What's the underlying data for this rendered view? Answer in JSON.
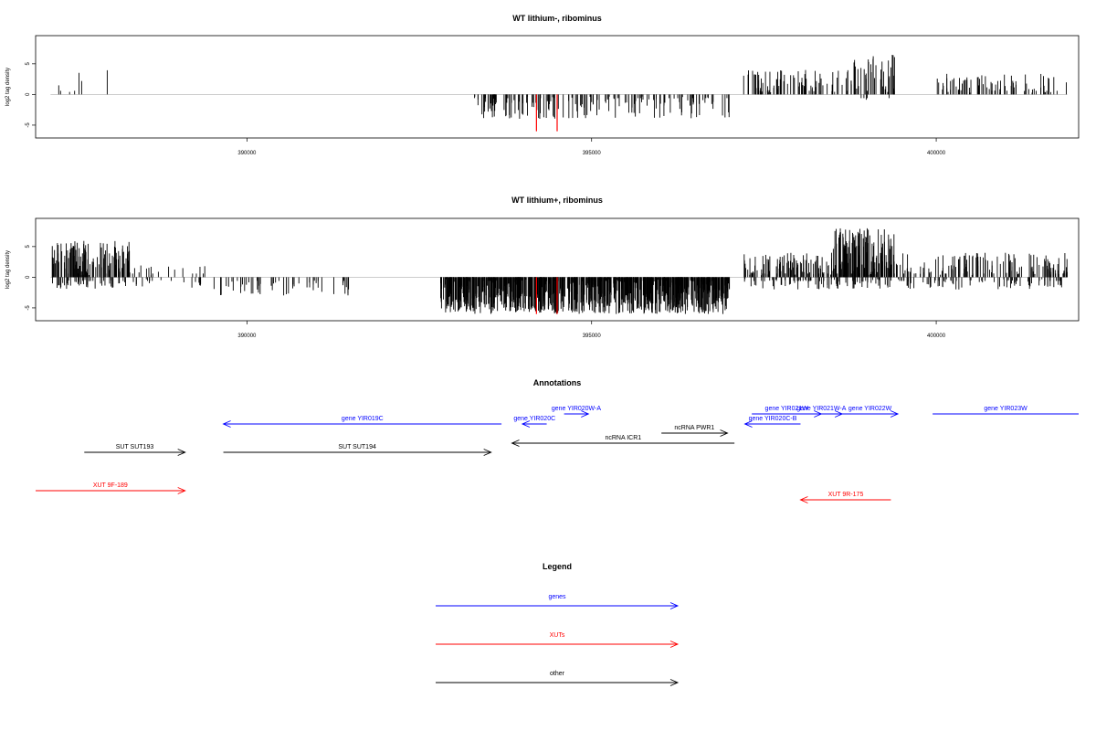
{
  "chart_data": [
    {
      "type": "bar",
      "title": "WT lithium-, ribominus",
      "ylabel": "log2 tag density",
      "xlim": [
        387000,
        402000
      ],
      "ylim": [
        -6.5,
        9
      ],
      "x_ticks": [
        390000,
        395000,
        400000
      ],
      "y_ticks": [
        -5,
        0,
        5
      ],
      "x_tick_labels": [
        "390000",
        "395000",
        "400000"
      ],
      "y_tick_labels": [
        "-5",
        "0",
        "5"
      ],
      "highlight_color": "#ff0000",
      "bar_color": "#000000",
      "highlights": [
        {
          "x": 394200,
          "value": -6
        },
        {
          "x": 394500,
          "value": -6
        }
      ],
      "segments": [
        {
          "x0": 387150,
          "x1": 388300,
          "density": 0.08,
          "min": -1,
          "max": 5.5,
          "seed": 11
        },
        {
          "x0": 393300,
          "x1": 397000,
          "density": 0.6,
          "min": -4,
          "max": 0,
          "seed": 23
        },
        {
          "x0": 397200,
          "x1": 398800,
          "density": 0.7,
          "min": 0,
          "max": 4,
          "seed": 31
        },
        {
          "x0": 398800,
          "x1": 399400,
          "density": 1.0,
          "min": -1,
          "max": 6.5,
          "seed": 41
        },
        {
          "x0": 400000,
          "x1": 401900,
          "density": 0.55,
          "min": 0,
          "max": 3.5,
          "seed": 53
        }
      ]
    },
    {
      "type": "bar",
      "title": "WT lithium+, ribominus",
      "ylabel": "log2 tag density",
      "xlim": [
        387000,
        402000
      ],
      "ylim": [
        -6.5,
        9
      ],
      "x_ticks": [
        390000,
        395000,
        400000
      ],
      "y_ticks": [
        -5,
        0,
        5
      ],
      "x_tick_labels": [
        "390000",
        "395000",
        "400000"
      ],
      "y_tick_labels": [
        "-5",
        "0",
        "5"
      ],
      "highlight_color": "#ff0000",
      "bar_color": "#000000",
      "highlights": [
        {
          "x": 394200,
          "value": -6
        },
        {
          "x": 394500,
          "value": -6
        }
      ],
      "segments": [
        {
          "x0": 387150,
          "x1": 388300,
          "density": 2.0,
          "min": -2,
          "max": 6,
          "seed": 61
        },
        {
          "x0": 388300,
          "x1": 389400,
          "density": 0.45,
          "min": -2,
          "max": 2,
          "seed": 67
        },
        {
          "x0": 389500,
          "x1": 391500,
          "density": 0.35,
          "min": -3,
          "max": 0,
          "seed": 71
        },
        {
          "x0": 392800,
          "x1": 397000,
          "density": 3.0,
          "min": -6,
          "max": 0,
          "seed": 79
        },
        {
          "x0": 397200,
          "x1": 398500,
          "density": 1.6,
          "min": -2,
          "max": 4,
          "seed": 83
        },
        {
          "x0": 398500,
          "x1": 399400,
          "density": 2.6,
          "min": -2,
          "max": 8,
          "seed": 89
        },
        {
          "x0": 399400,
          "x1": 401900,
          "density": 1.2,
          "min": -2,
          "max": 4,
          "seed": 97
        }
      ]
    }
  ],
  "annotations": {
    "title": "Annotations",
    "xlim": [
      387000,
      402000
    ],
    "features": [
      {
        "label": "gene YIR020W-A",
        "x_start": 394600,
        "x_end": 394950,
        "row": 0,
        "color": "#0000ff"
      },
      {
        "label": "gene YIR019C",
        "x_start": 393700,
        "x_end": 389700,
        "row": 1,
        "color": "#0000ff"
      },
      {
        "label": "gene YIR020C",
        "x_start": 394350,
        "x_end": 394000,
        "row": 1,
        "color": "#0000ff"
      },
      {
        "label": "ncRNA PWR1",
        "x_start": 396000,
        "x_end": 396950,
        "row": 2,
        "color": "#000000"
      },
      {
        "label": "ncRNA ICR1",
        "x_start": 397050,
        "x_end": 393850,
        "row": 3,
        "color": "#000000"
      },
      {
        "label": "SUT SUT193",
        "x_start": 387700,
        "x_end": 389150,
        "row": 4,
        "color": "#000000"
      },
      {
        "label": "SUT SUT194",
        "x_start": 389700,
        "x_end": 393550,
        "row": 4,
        "color": "#000000"
      },
      {
        "label": "gene YIR021W",
        "x_start": 397300,
        "x_end": 398300,
        "row": 0,
        "color": "#0000ff"
      },
      {
        "label": "gene YIR020C-B",
        "x_start": 398000,
        "x_end": 397200,
        "row": 1,
        "color": "#0000ff"
      },
      {
        "label": "gene YIR021W-A",
        "x_start": 398000,
        "x_end": 398600,
        "row": 0,
        "color": "#0000ff"
      },
      {
        "label": "gene YIR022W",
        "x_start": 398600,
        "x_end": 399400,
        "row": 0,
        "color": "#0000ff"
      },
      {
        "label": "gene YIR023W",
        "x_start": 399900,
        "x_end": 402000,
        "row": 0,
        "color": "#0000ff"
      },
      {
        "label": "XUT 9F-189",
        "x_start": 387000,
        "x_end": 389150,
        "row": 5,
        "color": "#ff0000"
      },
      {
        "label": "XUT 9R-175",
        "x_start": 399300,
        "x_end": 398000,
        "row": 6,
        "color": "#ff0000"
      }
    ]
  },
  "legend": {
    "title": "Legend",
    "items": [
      {
        "label": "genes",
        "color": "#0000ff"
      },
      {
        "label": "XUTs",
        "color": "#ff0000"
      },
      {
        "label": "other",
        "color": "#000000"
      }
    ]
  }
}
